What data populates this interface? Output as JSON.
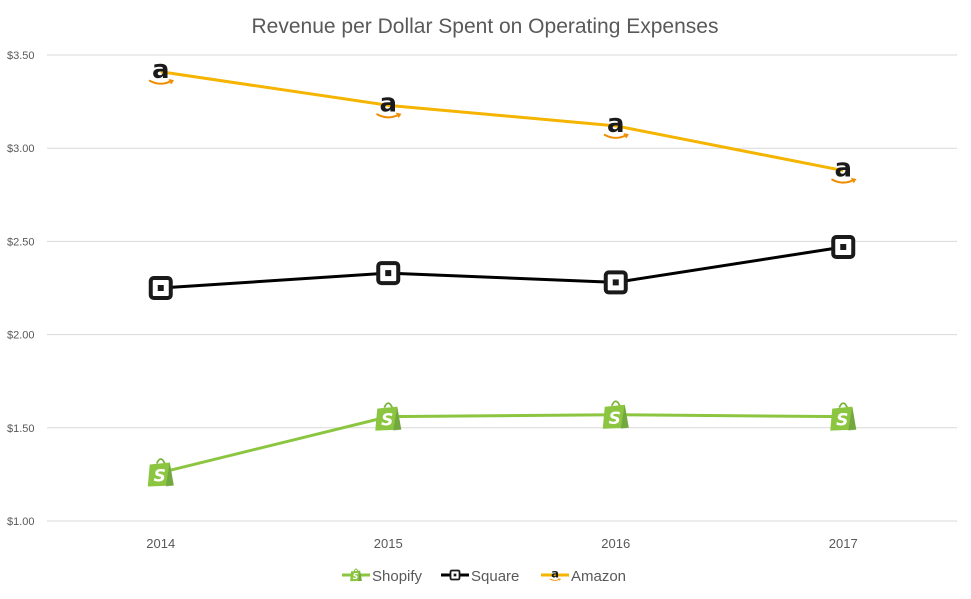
{
  "chart_data": {
    "type": "line",
    "title": "Revenue per Dollar Spent on Operating Expenses",
    "xlabel": "",
    "ylabel": "",
    "categories": [
      "2014",
      "2015",
      "2016",
      "2017"
    ],
    "ylim": [
      1.0,
      3.5
    ],
    "yticks": [
      1.0,
      1.5,
      2.0,
      2.5,
      3.0,
      3.5
    ],
    "ytick_labels": [
      "$1.00",
      "$1.50",
      "$2.00",
      "$2.50",
      "$3.00",
      "$3.50"
    ],
    "grid": true,
    "legend_position": "bottom",
    "series": [
      {
        "name": "Shopify",
        "color": "#8cc540",
        "marker": "shopify-bag-icon",
        "values": [
          1.26,
          1.56,
          1.57,
          1.56
        ]
      },
      {
        "name": "Square",
        "color": "#000000",
        "marker": "square-logo-icon",
        "values": [
          2.25,
          2.33,
          2.28,
          2.47
        ]
      },
      {
        "name": "Amazon",
        "color": "#f5b400",
        "marker": "amazon-a-icon",
        "values": [
          3.41,
          3.23,
          3.12,
          2.88
        ]
      }
    ]
  }
}
